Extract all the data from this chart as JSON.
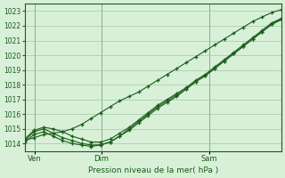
{
  "title": "",
  "xlabel": "Pression niveau de la mer( hPa )",
  "ylabel": "",
  "bg_color": "#d8f0d8",
  "grid_color": "#a0c8a0",
  "line_color": "#1a5c1a",
  "tick_label_color": "#1a5c1a",
  "xlabel_color": "#1a5c1a",
  "ylim": [
    1013.5,
    1023.5
  ],
  "yticks": [
    1014,
    1015,
    1016,
    1017,
    1018,
    1019,
    1020,
    1021,
    1022,
    1023
  ],
  "xtick_labels": [
    "Ven",
    "Dim",
    "Sam"
  ],
  "xtick_positions": [
    0.04,
    0.3,
    0.72
  ],
  "series": [
    [
      1014.2,
      1014.4,
      1014.6,
      1014.7,
      1014.8,
      1015.0,
      1015.3,
      1015.7,
      1016.1,
      1016.5,
      1016.9,
      1017.2,
      1017.5,
      1017.9,
      1018.3,
      1018.7,
      1019.1,
      1019.5,
      1019.9,
      1020.3,
      1020.7,
      1021.1,
      1021.5,
      1021.9,
      1022.3,
      1022.6,
      1022.9,
      1023.1
    ],
    [
      1014.3,
      1014.9,
      1015.1,
      1015.0,
      1014.8,
      1014.5,
      1014.3,
      1014.1,
      1014.1,
      1014.3,
      1014.7,
      1015.1,
      1015.6,
      1016.1,
      1016.6,
      1017.0,
      1017.4,
      1017.8,
      1018.3,
      1018.7,
      1019.2,
      1019.7,
      1020.2,
      1020.7,
      1021.2,
      1021.7,
      1022.2,
      1022.5
    ],
    [
      1014.2,
      1014.8,
      1015.0,
      1014.7,
      1014.4,
      1014.2,
      1014.0,
      1013.9,
      1013.9,
      1014.1,
      1014.5,
      1015.0,
      1015.5,
      1016.0,
      1016.5,
      1016.9,
      1017.3,
      1017.7,
      1018.2,
      1018.6,
      1019.1,
      1019.6,
      1020.1,
      1020.6,
      1021.1,
      1021.6,
      1022.1,
      1022.5
    ],
    [
      1014.1,
      1014.6,
      1014.8,
      1014.5,
      1014.2,
      1014.0,
      1013.9,
      1013.8,
      1013.9,
      1014.1,
      1014.5,
      1014.9,
      1015.4,
      1015.9,
      1016.4,
      1016.8,
      1017.2,
      1017.7,
      1018.2,
      1018.6,
      1019.1,
      1019.6,
      1020.1,
      1020.6,
      1021.1,
      1021.6,
      1022.1,
      1022.4
    ]
  ]
}
